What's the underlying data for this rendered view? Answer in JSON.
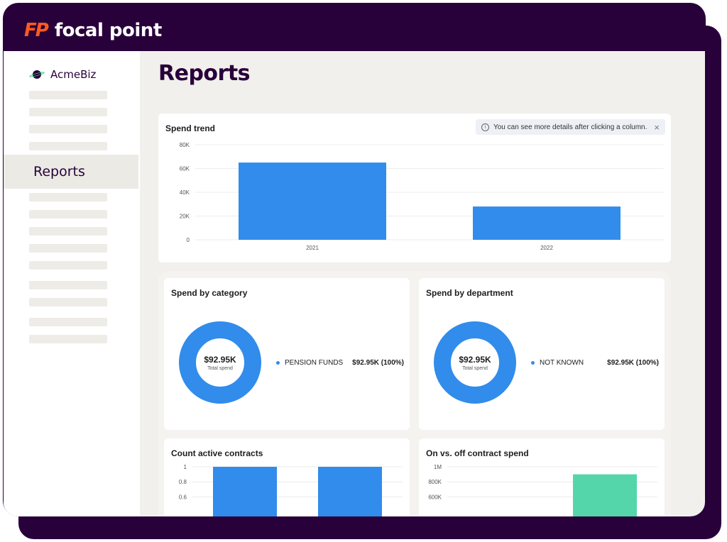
{
  "brand": {
    "mark": "FP",
    "name": "focal point",
    "mark_color": "#ff5a1f",
    "frame_color": "#28003a"
  },
  "sidebar": {
    "org_name": "AcmeBiz",
    "active_item": "Reports"
  },
  "page": {
    "title": "Reports"
  },
  "spend_trend": {
    "title": "Spend trend",
    "tip": {
      "text": "You can see more details after clicking a column.",
      "icon": "info-icon",
      "close": "×"
    }
  },
  "spend_by_category": {
    "title": "Spend by category",
    "center_value": "$92.95K",
    "center_label": "Total spend",
    "legend": {
      "label": "PENSION FUNDS",
      "value": "$92.95K  (100%)"
    }
  },
  "spend_by_department": {
    "title": "Spend by department",
    "center_value": "$92.95K",
    "center_label": "Total spend",
    "legend": {
      "label": "NOT KNOWN",
      "value": "$92.95K  (100%)"
    }
  },
  "count_active_contracts": {
    "title": "Count active contracts"
  },
  "on_off_contract": {
    "title": "On vs. off contract spend"
  },
  "colors": {
    "bar_blue": "#318ceb",
    "bar_green": "#55d6aa",
    "accent": "#28003a"
  },
  "chart_data": [
    {
      "type": "bar",
      "title": "Spend trend",
      "categories": [
        "2021",
        "2022"
      ],
      "values": [
        65000,
        28000
      ],
      "ylim": [
        0,
        80000
      ],
      "yticks": [
        "0",
        "20K",
        "40K",
        "60K",
        "80K"
      ],
      "ytick_values": [
        0,
        20000,
        40000,
        60000,
        80000
      ],
      "grid": true,
      "color": "#318ceb"
    },
    {
      "type": "pie",
      "title": "Spend by category",
      "categories": [
        "PENSION FUNDS"
      ],
      "values": [
        92950
      ],
      "color": "#318ceb"
    },
    {
      "type": "pie",
      "title": "Spend by department",
      "categories": [
        "NOT KNOWN"
      ],
      "values": [
        92950
      ],
      "color": "#318ceb"
    },
    {
      "type": "bar",
      "title": "Count active contracts",
      "values": [
        1,
        1
      ],
      "ylim": [
        0,
        1
      ],
      "yticks": [
        "0.6",
        "0.8",
        "1"
      ],
      "ytick_values": [
        0.6,
        0.8,
        1
      ],
      "grid": true,
      "color": "#318ceb"
    },
    {
      "type": "bar",
      "title": "On vs. off contract spend",
      "values": [
        0,
        900000
      ],
      "ylim": [
        0,
        1000000
      ],
      "yticks": [
        "600K",
        "800K",
        "1M"
      ],
      "ytick_values": [
        600000,
        800000,
        1000000
      ],
      "grid": true,
      "color": "#55d6aa"
    }
  ]
}
